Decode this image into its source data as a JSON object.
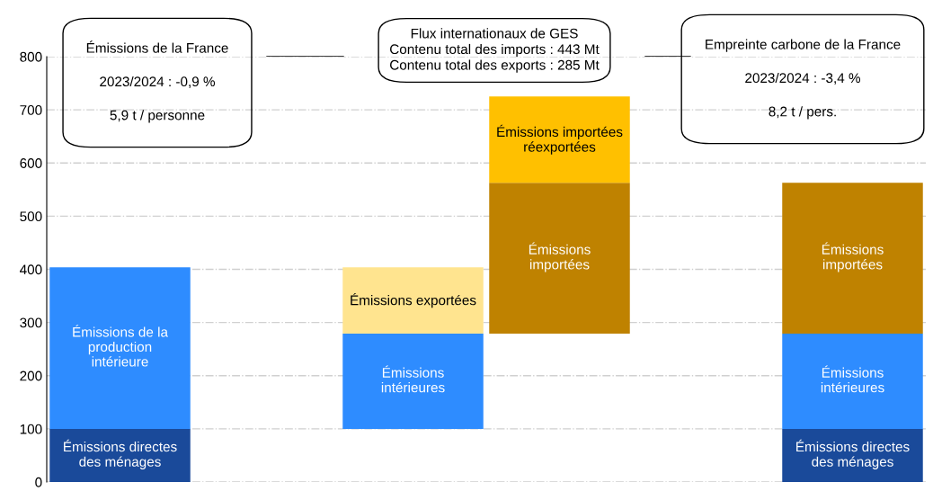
{
  "chart_data": {
    "type": "bar",
    "categories": [
      null,
      null,
      null,
      null,
      null,
      null
    ],
    "series": [
      {
        "color": "#1a4a9a",
        "base": [
          0,
          null,
          null,
          null,
          null,
          0
        ],
        "values": [
          100,
          null,
          null,
          null,
          null,
          100
        ],
        "value_labels": [
          "Émissions directes\ndes ménages",
          null,
          null,
          null,
          null,
          "Émissions directes\ndes ménages"
        ]
      },
      {
        "color": "#2e8cff",
        "base": [
          100,
          null,
          100,
          null,
          null,
          100
        ],
        "values": [
          304,
          null,
          179,
          null,
          null,
          179
        ],
        "value_labels": [
          "Émissions de la\nproduction\nintérieure",
          null,
          "Émissions\nintérieures",
          null,
          null,
          "Émissions\nintérieures"
        ]
      },
      {
        "color": "#ffe48f",
        "base": [
          null,
          null,
          279,
          null,
          null,
          null
        ],
        "values": [
          null,
          null,
          125,
          null,
          null,
          null
        ],
        "value_labels": [
          null,
          null,
          "Émissions exportées",
          null,
          null,
          null
        ]
      },
      {
        "color": "#bf8200",
        "base": [
          null,
          null,
          null,
          279,
          null,
          279
        ],
        "values": [
          null,
          null,
          null,
          284,
          null,
          284
        ],
        "value_labels": [
          null,
          null,
          null,
          "Émissions\nimportées",
          null,
          "Émissions\nimportées"
        ]
      },
      {
        "color": "#ffc000",
        "base": [
          null,
          null,
          null,
          563,
          null,
          null
        ],
        "values": [
          null,
          null,
          null,
          162,
          null,
          null
        ],
        "value_labels": [
          null,
          null,
          null,
          "Émissions importées\nréexportées",
          null,
          null
        ]
      }
    ],
    "ylim": [
      0,
      800
    ],
    "yticks": [
      0,
      100,
      200,
      300,
      400,
      500,
      600,
      700,
      800
    ],
    "grid": "y",
    "annotations": [
      "Émissions de la France\n\n2023/2024 : -0,9 %\n\n5,9 t / personne",
      "Flux internationaux de GES\nContenu total des imports : 443 Mt\nContenu total des exports : 285 Mt",
      "Empreinte carbone de la France\n\n2023/2024 : -3,4 %\n\n8,2 t / pers."
    ]
  }
}
